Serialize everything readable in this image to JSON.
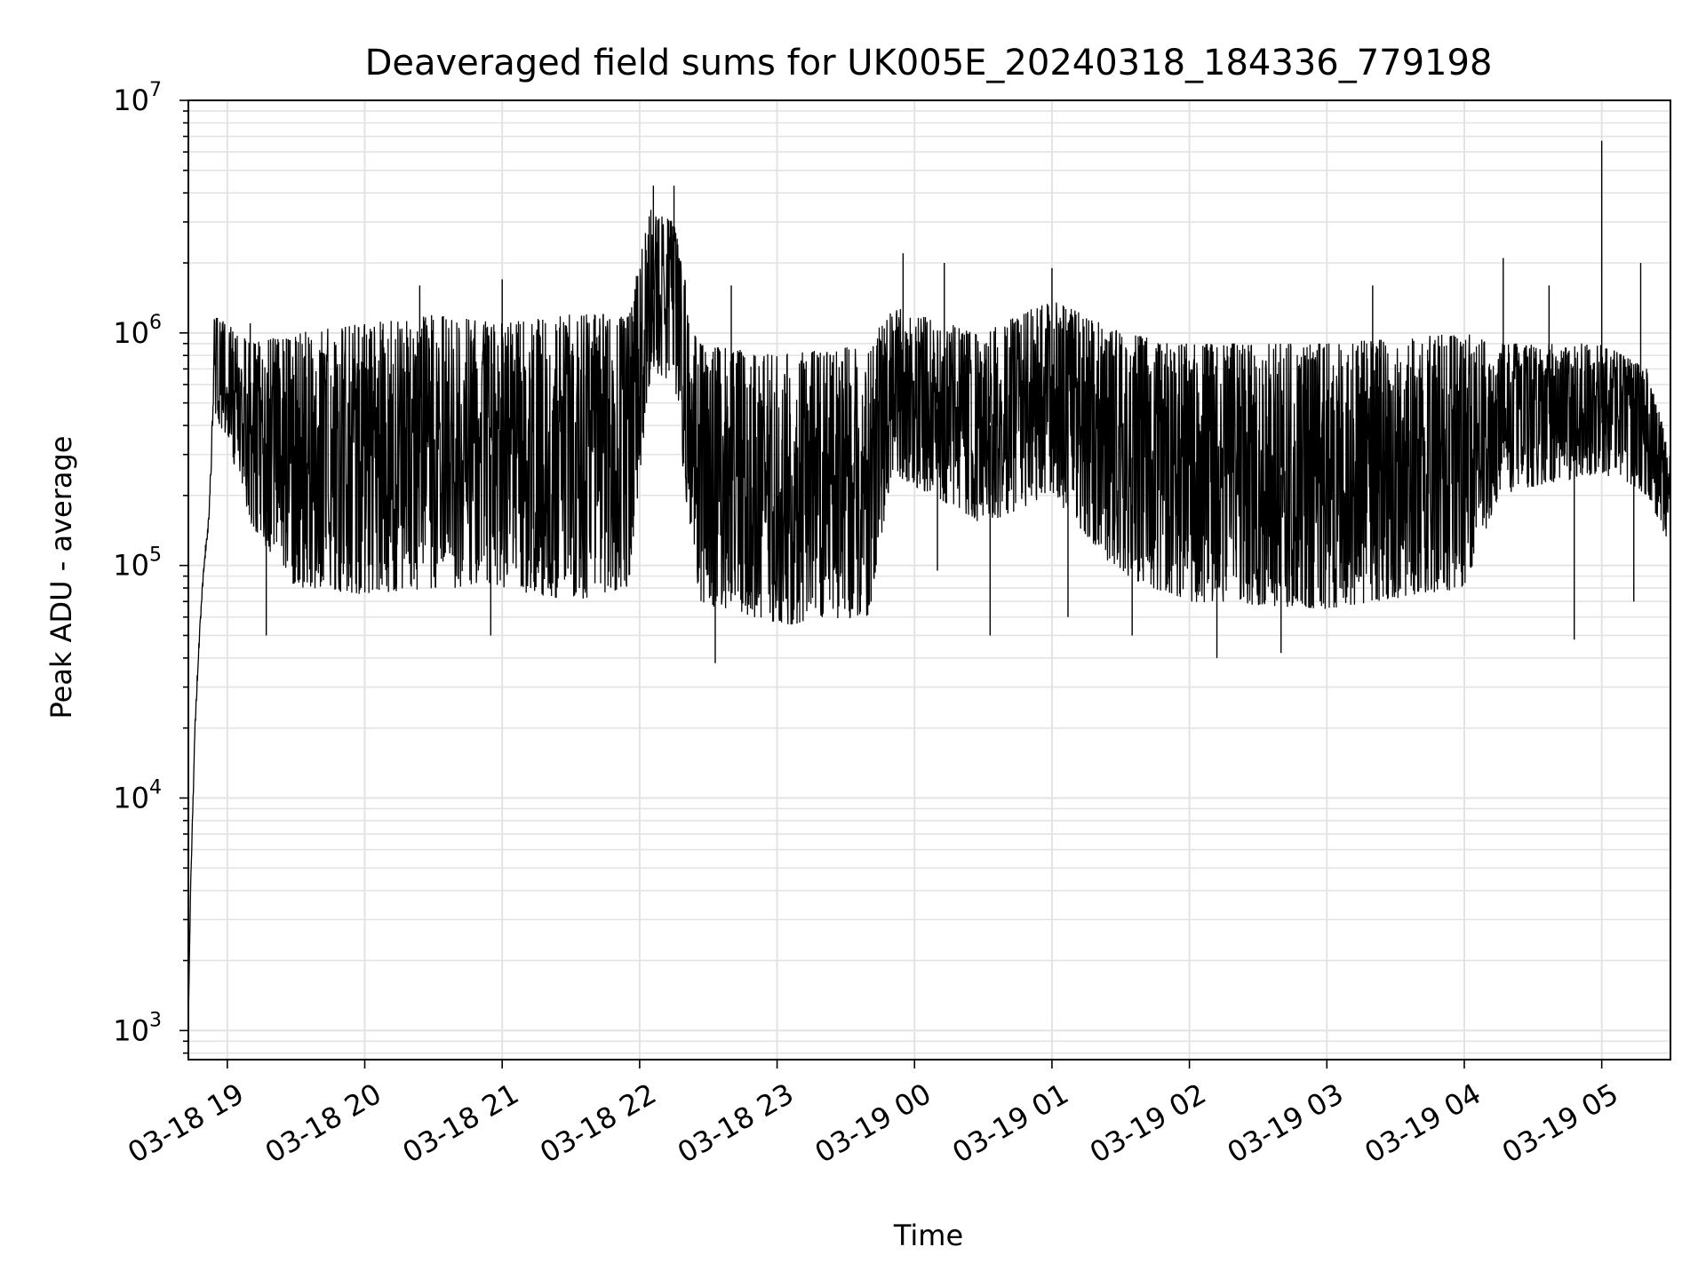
{
  "chart_data": {
    "type": "line",
    "title": "Deaveraged field sums for UK005E_20240318_184336_779198",
    "xlabel": "Time",
    "ylabel": "Peak ADU - average",
    "yscale": "log",
    "ylim": [
      750,
      10000000
    ],
    "xlim": [
      "2024-03-18 18:43",
      "2024-03-19 05:30"
    ],
    "grid": true,
    "series_color": "#000000",
    "x_ticks": [
      {
        "t": "2024-03-18 19:00",
        "label": "03-18 19"
      },
      {
        "t": "2024-03-18 20:00",
        "label": "03-18 20"
      },
      {
        "t": "2024-03-18 21:00",
        "label": "03-18 21"
      },
      {
        "t": "2024-03-18 22:00",
        "label": "03-18 22"
      },
      {
        "t": "2024-03-18 23:00",
        "label": "03-18 23"
      },
      {
        "t": "2024-03-19 00:00",
        "label": "03-19 00"
      },
      {
        "t": "2024-03-19 01:00",
        "label": "03-19 01"
      },
      {
        "t": "2024-03-19 02:00",
        "label": "03-19 02"
      },
      {
        "t": "2024-03-19 03:00",
        "label": "03-19 03"
      },
      {
        "t": "2024-03-19 04:00",
        "label": "03-19 04"
      },
      {
        "t": "2024-03-19 05:00",
        "label": "03-19 05"
      }
    ],
    "y_ticks": [
      {
        "value": 1000,
        "base": "10",
        "exp": "3"
      },
      {
        "value": 10000,
        "base": "10",
        "exp": "4"
      },
      {
        "value": 100000,
        "base": "10",
        "exp": "5"
      },
      {
        "value": 1000000,
        "base": "10",
        "exp": "6"
      },
      {
        "value": 10000000,
        "base": "10",
        "exp": "7"
      }
    ],
    "envelope": [
      {
        "t": "2024-03-18 18:43",
        "low": 1100,
        "high": 1100
      },
      {
        "t": "2024-03-18 18:44",
        "low": 4000,
        "high": 5000
      },
      {
        "t": "2024-03-18 18:46",
        "low": 20000,
        "high": 30000
      },
      {
        "t": "2024-03-18 18:48",
        "low": 50000,
        "high": 70000
      },
      {
        "t": "2024-03-18 18:50",
        "low": 100000,
        "high": 130000
      },
      {
        "t": "2024-03-18 18:52",
        "low": 150000,
        "high": 200000
      },
      {
        "t": "2024-03-18 18:54",
        "low": 450000,
        "high": 1200000
      },
      {
        "t": "2024-03-18 19:00",
        "low": 350000,
        "high": 1100000
      },
      {
        "t": "2024-03-18 19:10",
        "low": 150000,
        "high": 900000
      },
      {
        "t": "2024-03-18 19:30",
        "low": 80000,
        "high": 1000000
      },
      {
        "t": "2024-03-18 20:00",
        "low": 75000,
        "high": 1100000
      },
      {
        "t": "2024-03-18 20:30",
        "low": 80000,
        "high": 1200000
      },
      {
        "t": "2024-03-18 21:00",
        "low": 80000,
        "high": 1100000
      },
      {
        "t": "2024-03-18 21:30",
        "low": 70000,
        "high": 1200000
      },
      {
        "t": "2024-03-18 21:55",
        "low": 80000,
        "high": 1200000
      },
      {
        "t": "2024-03-18 22:05",
        "low": 700000,
        "high": 3500000
      },
      {
        "t": "2024-03-18 22:15",
        "low": 600000,
        "high": 3000000
      },
      {
        "t": "2024-03-18 22:25",
        "low": 70000,
        "high": 900000
      },
      {
        "t": "2024-03-18 23:00",
        "low": 55000,
        "high": 800000
      },
      {
        "t": "2024-03-18 23:40",
        "low": 60000,
        "high": 900000
      },
      {
        "t": "2024-03-18 23:50",
        "low": 250000,
        "high": 1300000
      },
      {
        "t": "2024-03-19 00:30",
        "low": 150000,
        "high": 1000000
      },
      {
        "t": "2024-03-19 01:00",
        "low": 200000,
        "high": 1400000
      },
      {
        "t": "2024-03-19 01:30",
        "low": 90000,
        "high": 1000000
      },
      {
        "t": "2024-03-19 02:00",
        "low": 70000,
        "high": 900000
      },
      {
        "t": "2024-03-19 03:00",
        "low": 65000,
        "high": 900000
      },
      {
        "t": "2024-03-19 04:00",
        "low": 80000,
        "high": 1000000
      },
      {
        "t": "2024-03-19 04:15",
        "low": 200000,
        "high": 900000
      },
      {
        "t": "2024-03-19 05:00",
        "low": 250000,
        "high": 900000
      },
      {
        "t": "2024-03-19 05:20",
        "low": 200000,
        "high": 700000
      },
      {
        "t": "2024-03-19 05:30",
        "low": 120000,
        "high": 300000
      }
    ],
    "spikes": [
      {
        "t": "2024-03-18 19:10",
        "value": 1100000,
        "dir": "up"
      },
      {
        "t": "2024-03-18 19:17",
        "value": 50000,
        "dir": "down"
      },
      {
        "t": "2024-03-18 20:24",
        "value": 1600000,
        "dir": "up"
      },
      {
        "t": "2024-03-18 20:55",
        "value": 50000,
        "dir": "down"
      },
      {
        "t": "2024-03-18 21:00",
        "value": 1700000,
        "dir": "up"
      },
      {
        "t": "2024-03-18 22:06",
        "value": 4300000,
        "dir": "up"
      },
      {
        "t": "2024-03-18 22:15",
        "value": 4300000,
        "dir": "up"
      },
      {
        "t": "2024-03-18 22:33",
        "value": 38000,
        "dir": "down"
      },
      {
        "t": "2024-03-18 22:40",
        "value": 1600000,
        "dir": "up"
      },
      {
        "t": "2024-03-18 23:55",
        "value": 2200000,
        "dir": "up"
      },
      {
        "t": "2024-03-19 00:10",
        "value": 95000,
        "dir": "down"
      },
      {
        "t": "2024-03-19 00:13",
        "value": 2000000,
        "dir": "up"
      },
      {
        "t": "2024-03-19 00:33",
        "value": 50000,
        "dir": "down"
      },
      {
        "t": "2024-03-19 01:00",
        "value": 1900000,
        "dir": "up"
      },
      {
        "t": "2024-03-19 01:07",
        "value": 60000,
        "dir": "down"
      },
      {
        "t": "2024-03-19 01:35",
        "value": 50000,
        "dir": "down"
      },
      {
        "t": "2024-03-19 02:12",
        "value": 40000,
        "dir": "down"
      },
      {
        "t": "2024-03-19 02:40",
        "value": 42000,
        "dir": "down"
      },
      {
        "t": "2024-03-19 03:20",
        "value": 1600000,
        "dir": "up"
      },
      {
        "t": "2024-03-19 04:17",
        "value": 2100000,
        "dir": "up"
      },
      {
        "t": "2024-03-19 04:37",
        "value": 1600000,
        "dir": "up"
      },
      {
        "t": "2024-03-19 04:48",
        "value": 48000,
        "dir": "down"
      },
      {
        "t": "2024-03-19 05:00",
        "value": 6700000,
        "dir": "up"
      },
      {
        "t": "2024-03-19 05:17",
        "value": 2000000,
        "dir": "up"
      },
      {
        "t": "2024-03-19 05:14",
        "value": 70000,
        "dir": "down"
      }
    ]
  }
}
